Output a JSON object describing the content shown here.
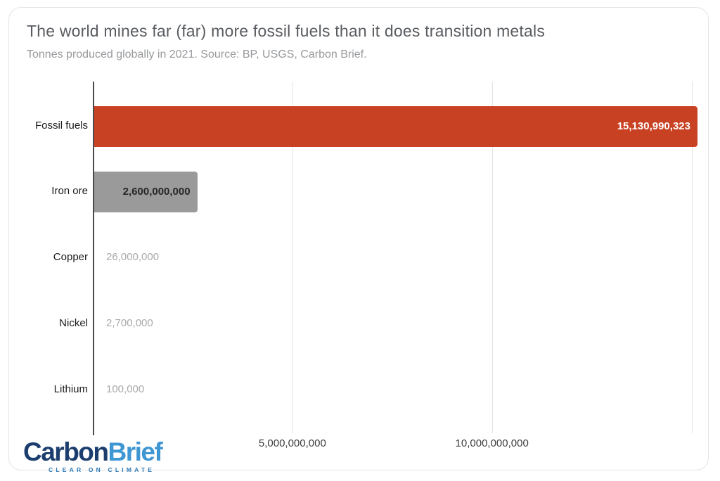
{
  "header": {
    "title": "The world mines far (far) more fossil fuels than it does transition metals",
    "subtitle": "Tonnes produced globally in 2021. Source: BP, USGS, Carbon Brief."
  },
  "chart_data": {
    "type": "bar",
    "orientation": "horizontal",
    "title": "The world mines far (far) more fossil fuels than it does transition metals",
    "subtitle": "Tonnes produced globally in 2021. Source: BP, USGS, Carbon Brief.",
    "categories": [
      "Fossil fuels",
      "Iron ore",
      "Copper",
      "Nickel",
      "Lithium"
    ],
    "values": [
      15130990323,
      2600000000,
      26000000,
      2700000,
      100000
    ],
    "value_labels": [
      "15,130,990,323",
      "2,600,000,000",
      "26,000,000",
      "2,700,000",
      "100,000"
    ],
    "bar_colors": [
      "#c84123",
      "#9a9a9a",
      "#9a9a9a",
      "#9a9a9a",
      "#9a9a9a"
    ],
    "value_label_placement": [
      "inside-right",
      "inside-right",
      "outside",
      "outside",
      "outside"
    ],
    "value_label_colors": [
      "#ffffff",
      "#262626",
      "#a9a9a9",
      "#a9a9a9",
      "#a9a9a9"
    ],
    "xlabel": "",
    "ylabel": "",
    "xlim": [
      0,
      15300000000
    ],
    "x_ticks": [
      {
        "value": 5000000000,
        "label": "5,000,000,000"
      },
      {
        "value": 10000000000,
        "label": "10,000,000,000"
      }
    ],
    "gridline_values": [
      5000000000,
      10000000000,
      15000000000
    ],
    "grid": "vertical",
    "legend": "none"
  },
  "logo": {
    "part1": "Carbon",
    "part2": "Brief",
    "tagline": "CLEAR ON CLIMATE",
    "part1_color": "#1c3e6e",
    "part2_color": "#3e96d2"
  },
  "colors": {
    "bar_red": "#c84123",
    "bar_gray": "#9a9a9a",
    "gridline": "#e4e4e4",
    "axis": "#4a4a4a",
    "card_border": "#e3e4e6"
  }
}
